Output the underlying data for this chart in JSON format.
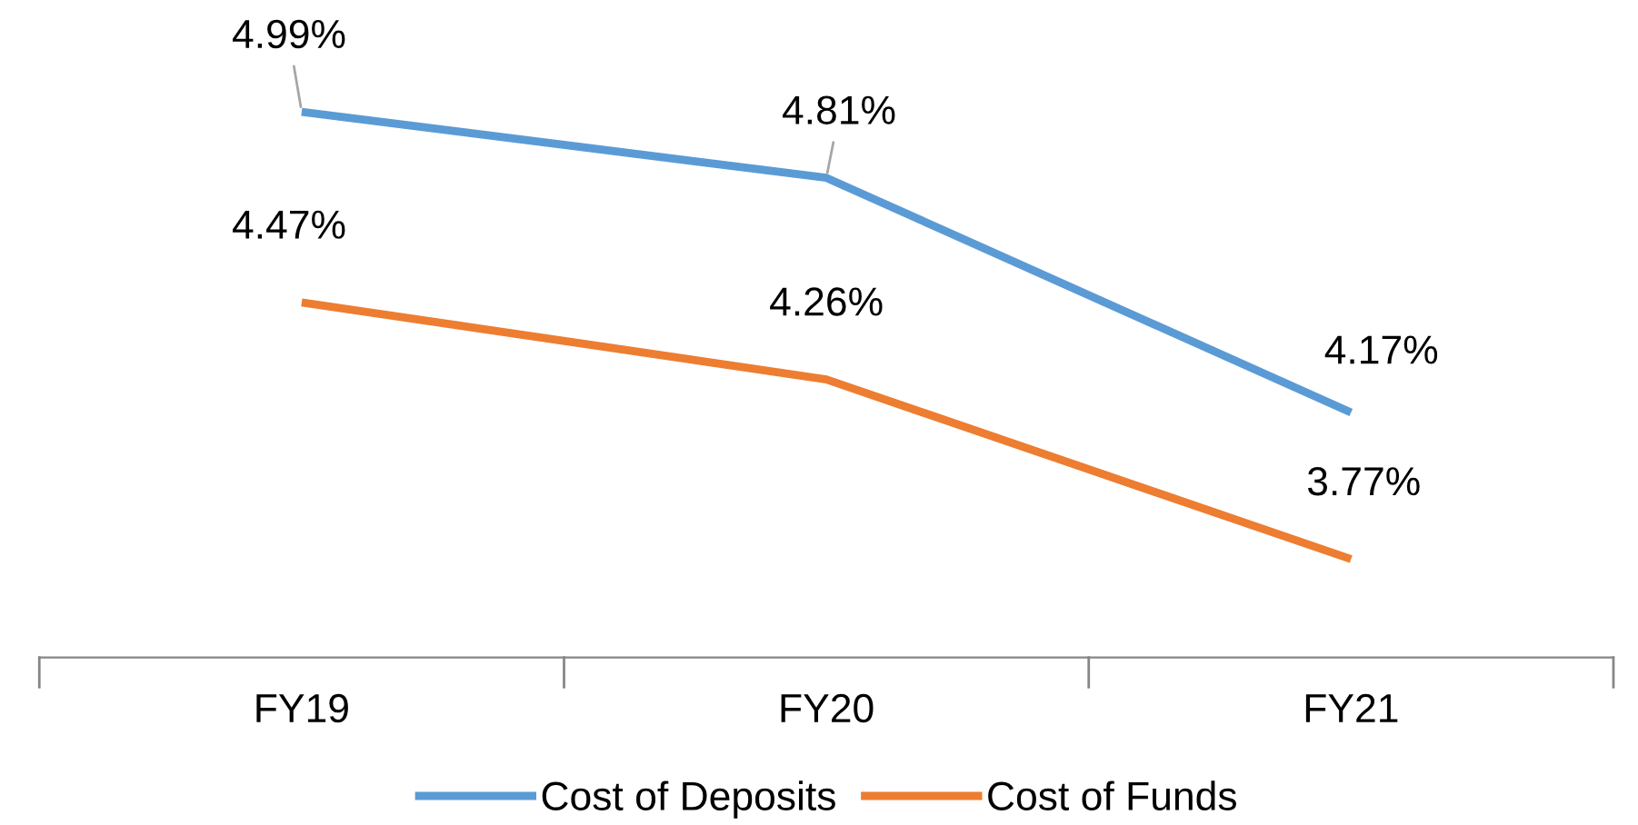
{
  "chart_data": {
    "type": "line",
    "categories": [
      "FY19",
      "FY20",
      "FY21"
    ],
    "series": [
      {
        "name": "Cost of Deposits",
        "color": "#5b9bd5",
        "values": [
          4.99,
          4.81,
          4.17
        ],
        "value_labels": [
          "4.99%",
          "4.81%",
          "4.17%"
        ]
      },
      {
        "name": "Cost of Funds",
        "color": "#ed7d31",
        "values": [
          4.47,
          4.26,
          3.77
        ],
        "value_labels": [
          "4.47%",
          "4.26%",
          "3.77%"
        ]
      }
    ],
    "tick_labels": "x",
    "grid": false,
    "legend": "bottom",
    "marker": "none",
    "line_style": "solid"
  }
}
